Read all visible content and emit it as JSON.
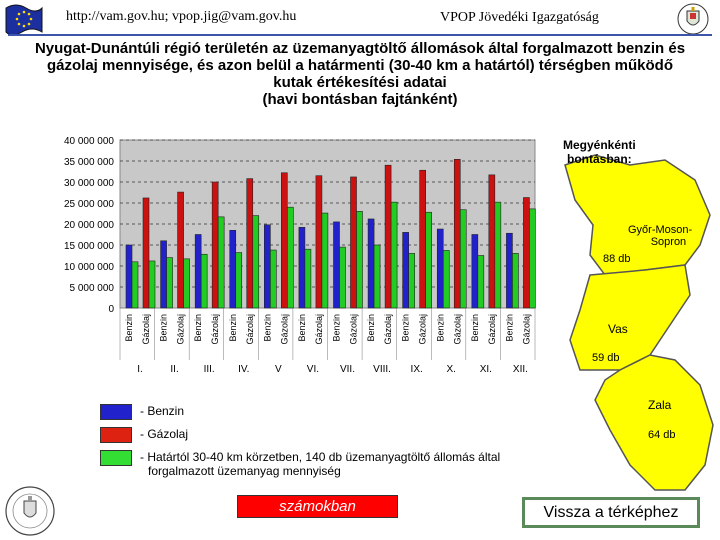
{
  "header": {
    "left_text": "http://vam.gov.hu; vpop.jig@vam.gov.hu",
    "right_text": "VPOP Jövedéki Igazgatóság"
  },
  "title": {
    "line1": "Nyugat-Dunántúli régió területén az üzemanyagtöltő állomások által forgalmazott benzin és",
    "line2": "gázolaj mennyisége, és azon belül a határmenti (30-40 km a határtól) térségben működő",
    "line3": "kutak értékesítési adatai",
    "line4": "(havi bontásban fajtánként)"
  },
  "map": {
    "heading_line1": "Megyénkénti",
    "heading_line2": "bontásban:",
    "regions": [
      {
        "name": "Győr-Moson-",
        "name2": "Sopron",
        "count": "88 db"
      },
      {
        "name": "Vas",
        "count": "59 db"
      },
      {
        "name": "Zala",
        "count": "64 db"
      }
    ],
    "colors": {
      "fill": "#ffff00",
      "stroke": "#555555"
    }
  },
  "legend": {
    "benzin": "- Benzin",
    "gazolaj": "- Gázolaj",
    "border_line1": "- Határtól 30-40 km körzetben, 140 db üzemanyagtöltő állomás által",
    "border_line2": "forgalmazott üzemanyag mennyiség"
  },
  "buttons": {
    "numbers": "számokban",
    "back_to_map": "Vissza a térképhez"
  },
  "chart_data": {
    "type": "bar",
    "categories": [
      "I.",
      "II.",
      "III.",
      "IV.",
      "V",
      "VI.",
      "VII.",
      "VIII.",
      "IX.",
      "X.",
      "XI.",
      "XII."
    ],
    "bar_labels": [
      "Benzin",
      "Gázolaj"
    ],
    "ylim": [
      0,
      40000000
    ],
    "yticks": [
      "0",
      "5 000 000",
      "10 000 000",
      "15 000 000",
      "20 000 000",
      "25 000 000",
      "30 000 000",
      "35 000 000",
      "40 000 000"
    ],
    "grid": "dashed horizontal",
    "series": [
      {
        "name": "Benzin",
        "color": "#2222cc",
        "values": [
          15000000,
          16000000,
          17500000,
          18500000,
          19800000,
          19200000,
          20500000,
          21200000,
          18000000,
          18800000,
          17500000,
          17800000
        ]
      },
      {
        "name": "Gázolaj",
        "color": "#cc1111",
        "values": [
          26200000,
          27600000,
          30000000,
          30800000,
          32200000,
          31500000,
          31200000,
          34000000,
          32800000,
          35400000,
          31700000,
          26300000
        ]
      },
      {
        "name": "Határtól 30-40 km",
        "color": "#22cc22",
        "values": [
          11200000,
          11700000,
          21700000,
          22000000,
          24000000,
          22600000,
          23000000,
          25200000,
          22800000,
          23400000,
          25200000,
          23600000
        ]
      },
      {
        "name": "Határtól 30-40 km",
        "color": "#22cc22",
        "values": [
          11000000,
          12000000,
          12800000,
          13200000,
          13800000,
          14000000,
          14500000,
          15000000,
          13000000,
          13700000,
          12500000,
          13000000
        ]
      }
    ],
    "colors": {
      "benzin": "#2222cc",
      "gazolaj": "#cc1111",
      "border": "#22cc22",
      "plot_bg": "#c8c8c8"
    }
  }
}
